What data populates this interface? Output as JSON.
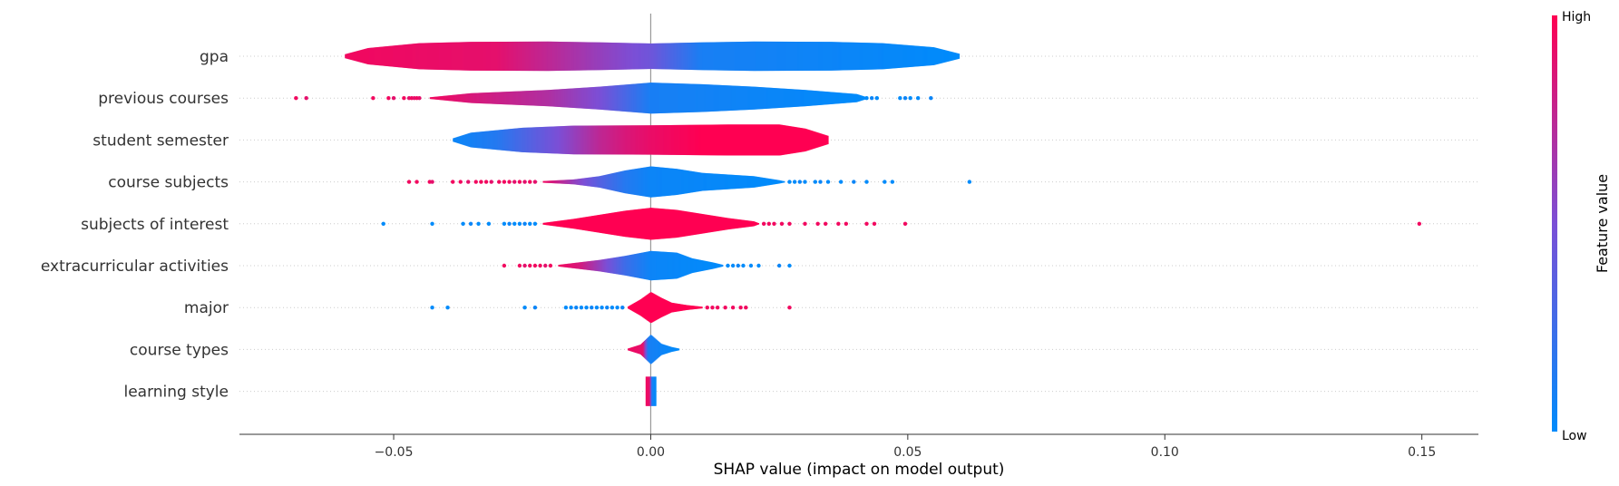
{
  "chart_data": {
    "type": "violin",
    "xlabel": "SHAP value (impact on model output)",
    "xlim": [
      -0.08,
      0.161
    ],
    "xticks": [
      -0.05,
      0.0,
      0.05,
      0.1,
      0.15
    ],
    "xtick_labels": [
      "−0.05",
      "0.00",
      "0.05",
      "0.10",
      "0.15"
    ],
    "colorbar": {
      "title": "Feature value",
      "high_label": "High",
      "low_label": "Low",
      "low_color": "#008bfb",
      "high_color": "#ff0052"
    },
    "features": [
      {
        "name": "gpa",
        "profile": [
          [
            -0.0595,
            0.12
          ],
          [
            -0.055,
            0.5
          ],
          [
            -0.045,
            0.8
          ],
          [
            -0.035,
            0.88
          ],
          [
            -0.02,
            0.9
          ],
          [
            -0.01,
            0.85
          ],
          [
            0.0,
            0.78
          ],
          [
            0.01,
            0.85
          ],
          [
            0.02,
            0.9
          ],
          [
            0.035,
            0.88
          ],
          [
            0.045,
            0.8
          ],
          [
            0.055,
            0.55
          ],
          [
            0.06,
            0.15
          ]
        ],
        "color": [
          [
            -0.06,
            0.95
          ],
          [
            -0.03,
            0.9
          ],
          [
            -0.02,
            0.75
          ],
          [
            -0.01,
            0.6
          ],
          [
            0.0,
            0.45
          ],
          [
            0.01,
            0.1
          ],
          [
            0.06,
            0.0
          ]
        ],
        "outliers": []
      },
      {
        "name": "previous courses",
        "profile": [
          [
            -0.043,
            0.05
          ],
          [
            -0.035,
            0.3
          ],
          [
            -0.02,
            0.5
          ],
          [
            -0.01,
            0.7
          ],
          [
            0.0,
            0.95
          ],
          [
            0.01,
            0.85
          ],
          [
            0.02,
            0.7
          ],
          [
            0.03,
            0.5
          ],
          [
            0.04,
            0.25
          ],
          [
            0.042,
            0.05
          ]
        ],
        "color": [
          [
            -0.043,
            0.95
          ],
          [
            -0.035,
            0.85
          ],
          [
            -0.02,
            0.7
          ],
          [
            -0.01,
            0.5
          ],
          [
            -0.005,
            0.3
          ],
          [
            0.0,
            0.1
          ],
          [
            0.042,
            0.0
          ]
        ],
        "outliers": [
          [
            -0.069,
            0.95
          ],
          [
            -0.067,
            0.9
          ],
          [
            -0.054,
            0.95
          ],
          [
            -0.051,
            0.95
          ],
          [
            -0.05,
            0.9
          ],
          [
            -0.048,
            0.95
          ],
          [
            -0.047,
            0.9
          ],
          [
            -0.0465,
            0.95
          ],
          [
            -0.046,
            0.9
          ],
          [
            -0.0455,
            0.95
          ],
          [
            -0.045,
            0.9
          ],
          [
            0.042,
            0.0
          ],
          [
            0.043,
            0.05
          ],
          [
            0.044,
            0.0
          ],
          [
            0.0485,
            0.0
          ],
          [
            0.0495,
            0.05
          ],
          [
            0.0505,
            0.0
          ],
          [
            0.052,
            0.0
          ],
          [
            0.0545,
            0.05
          ]
        ]
      },
      {
        "name": "student semester",
        "profile": [
          [
            -0.0385,
            0.1
          ],
          [
            -0.035,
            0.45
          ],
          [
            -0.025,
            0.75
          ],
          [
            -0.015,
            0.88
          ],
          [
            0.0,
            0.9
          ],
          [
            0.015,
            0.95
          ],
          [
            0.025,
            0.95
          ],
          [
            0.03,
            0.7
          ],
          [
            0.0345,
            0.25
          ]
        ],
        "color": [
          [
            -0.038,
            0.05
          ],
          [
            -0.03,
            0.15
          ],
          [
            -0.025,
            0.3
          ],
          [
            -0.018,
            0.5
          ],
          [
            -0.01,
            0.75
          ],
          [
            -0.005,
            0.85
          ],
          [
            0.0,
            0.92
          ],
          [
            0.01,
            1.0
          ],
          [
            0.035,
            1.0
          ]
        ],
        "outliers": []
      },
      {
        "name": "course subjects",
        "profile": [
          [
            -0.021,
            0.05
          ],
          [
            -0.015,
            0.15
          ],
          [
            -0.01,
            0.35
          ],
          [
            -0.005,
            0.7
          ],
          [
            0.0,
            0.95
          ],
          [
            0.005,
            0.8
          ],
          [
            0.01,
            0.55
          ],
          [
            0.02,
            0.35
          ],
          [
            0.025,
            0.1
          ],
          [
            0.026,
            0.03
          ]
        ],
        "color": [
          [
            -0.021,
            0.95
          ],
          [
            -0.015,
            0.6
          ],
          [
            -0.01,
            0.35
          ],
          [
            -0.005,
            0.15
          ],
          [
            0.0,
            0.05
          ],
          [
            0.026,
            0.0
          ]
        ],
        "outliers": [
          [
            -0.047,
            0.95
          ],
          [
            -0.0455,
            0.95
          ],
          [
            -0.043,
            0.95
          ],
          [
            -0.0425,
            0.9
          ],
          [
            -0.0385,
            0.95
          ],
          [
            -0.037,
            0.95
          ],
          [
            -0.0355,
            0.9
          ],
          [
            -0.034,
            0.95
          ],
          [
            -0.033,
            0.95
          ],
          [
            -0.032,
            0.95
          ],
          [
            -0.031,
            0.9
          ],
          [
            -0.0295,
            0.95
          ],
          [
            -0.0285,
            0.95
          ],
          [
            -0.0275,
            0.95
          ],
          [
            -0.0265,
            0.9
          ],
          [
            -0.0255,
            0.95
          ],
          [
            -0.0245,
            0.9
          ],
          [
            -0.0235,
            0.95
          ],
          [
            -0.0225,
            0.9
          ],
          [
            0.027,
            0.0
          ],
          [
            0.028,
            0.0
          ],
          [
            0.029,
            0.05
          ],
          [
            0.03,
            0.0
          ],
          [
            0.032,
            0.0
          ],
          [
            0.033,
            0.05
          ],
          [
            0.0345,
            0.0
          ],
          [
            0.037,
            0.0
          ],
          [
            0.0395,
            0.05
          ],
          [
            0.042,
            0.0
          ],
          [
            0.0455,
            0.0
          ],
          [
            0.047,
            0.0
          ],
          [
            0.062,
            0.0
          ]
        ]
      },
      {
        "name": "subjects of interest",
        "profile": [
          [
            -0.021,
            0.05
          ],
          [
            -0.015,
            0.3
          ],
          [
            -0.01,
            0.55
          ],
          [
            -0.005,
            0.8
          ],
          [
            0.0,
            0.98
          ],
          [
            0.005,
            0.85
          ],
          [
            0.01,
            0.6
          ],
          [
            0.015,
            0.35
          ],
          [
            0.02,
            0.15
          ],
          [
            0.021,
            0.03
          ]
        ],
        "color": [
          [
            -0.021,
            1.0
          ],
          [
            0.021,
            1.0
          ]
        ],
        "outliers": [
          [
            -0.052,
            0.0
          ],
          [
            -0.0425,
            0.0
          ],
          [
            -0.0365,
            0.0
          ],
          [
            -0.035,
            0.05
          ],
          [
            -0.0335,
            0.0
          ],
          [
            -0.0315,
            0.0
          ],
          [
            -0.0285,
            0.0
          ],
          [
            -0.0275,
            0.05
          ],
          [
            -0.0265,
            0.0
          ],
          [
            -0.0255,
            0.0
          ],
          [
            -0.0245,
            0.05
          ],
          [
            -0.0235,
            0.0
          ],
          [
            -0.0225,
            0.0
          ],
          [
            0.022,
            0.95
          ],
          [
            0.023,
            0.95
          ],
          [
            0.024,
            0.95
          ],
          [
            0.0255,
            0.95
          ],
          [
            0.027,
            0.95
          ],
          [
            0.03,
            0.95
          ],
          [
            0.0325,
            0.95
          ],
          [
            0.034,
            0.95
          ],
          [
            0.0365,
            0.95
          ],
          [
            0.038,
            0.95
          ],
          [
            0.042,
            0.95
          ],
          [
            0.0435,
            0.95
          ],
          [
            0.0495,
            0.95
          ],
          [
            0.1495,
            0.95
          ]
        ]
      },
      {
        "name": "extracurricular activities",
        "profile": [
          [
            -0.018,
            0.05
          ],
          [
            -0.014,
            0.2
          ],
          [
            -0.01,
            0.35
          ],
          [
            -0.005,
            0.6
          ],
          [
            0.0,
            0.9
          ],
          [
            0.005,
            0.8
          ],
          [
            0.008,
            0.45
          ],
          [
            0.012,
            0.2
          ],
          [
            0.014,
            0.05
          ]
        ],
        "color": [
          [
            -0.018,
            0.95
          ],
          [
            -0.014,
            0.85
          ],
          [
            -0.01,
            0.6
          ],
          [
            -0.005,
            0.25
          ],
          [
            0.0,
            0.05
          ],
          [
            0.014,
            0.0
          ]
        ],
        "outliers": [
          [
            -0.0285,
            0.95
          ],
          [
            -0.0255,
            0.95
          ],
          [
            -0.0245,
            0.9
          ],
          [
            -0.0235,
            0.95
          ],
          [
            -0.0225,
            0.95
          ],
          [
            -0.0215,
            0.95
          ],
          [
            -0.0205,
            0.9
          ],
          [
            -0.0195,
            0.95
          ],
          [
            0.015,
            0.0
          ],
          [
            0.016,
            0.0
          ],
          [
            0.017,
            0.05
          ],
          [
            0.018,
            0.0
          ],
          [
            0.0195,
            0.0
          ],
          [
            0.021,
            0.0
          ],
          [
            0.025,
            0.05
          ],
          [
            0.027,
            0.0
          ]
        ]
      },
      {
        "name": "major",
        "profile": [
          [
            -0.0045,
            0.05
          ],
          [
            -0.002,
            0.5
          ],
          [
            0.0,
            0.95
          ],
          [
            0.002,
            0.6
          ],
          [
            0.004,
            0.3
          ],
          [
            0.007,
            0.15
          ],
          [
            0.01,
            0.05
          ]
        ],
        "color": [
          [
            -0.0045,
            1.0
          ],
          [
            0.01,
            1.0
          ]
        ],
        "outliers": [
          [
            -0.0425,
            0.0
          ],
          [
            -0.0395,
            0.0
          ],
          [
            -0.0245,
            0.0
          ],
          [
            -0.0225,
            0.05
          ],
          [
            -0.0165,
            0.0
          ],
          [
            -0.0155,
            0.0
          ],
          [
            -0.0145,
            0.05
          ],
          [
            -0.0135,
            0.0
          ],
          [
            -0.0125,
            0.0
          ],
          [
            -0.0115,
            0.05
          ],
          [
            -0.0105,
            0.0
          ],
          [
            -0.0095,
            0.0
          ],
          [
            -0.0085,
            0.05
          ],
          [
            -0.0075,
            0.0
          ],
          [
            -0.0065,
            0.0
          ],
          [
            -0.0055,
            0.05
          ],
          [
            0.011,
            0.95
          ],
          [
            0.012,
            0.95
          ],
          [
            0.013,
            0.95
          ],
          [
            0.0145,
            0.95
          ],
          [
            0.016,
            0.95
          ],
          [
            0.0175,
            0.95
          ],
          [
            0.0185,
            0.95
          ],
          [
            0.027,
            0.95
          ]
        ]
      },
      {
        "name": "course types",
        "profile": [
          [
            -0.0045,
            0.05
          ],
          [
            -0.002,
            0.3
          ],
          [
            0.0,
            0.9
          ],
          [
            0.002,
            0.35
          ],
          [
            0.004,
            0.15
          ],
          [
            0.0055,
            0.05
          ]
        ],
        "color": [
          [
            -0.0045,
            0.95
          ],
          [
            -0.0015,
            0.9
          ],
          [
            -0.0005,
            0.1
          ],
          [
            0.0055,
            0.0
          ]
        ],
        "outliers": []
      },
      {
        "name": "learning style",
        "profile": [
          [
            -0.001,
            0.9
          ],
          [
            0.0,
            0.9
          ],
          [
            0.001,
            0.9
          ]
        ],
        "color": [
          [
            -0.001,
            0.95
          ],
          [
            -0.0002,
            0.9
          ],
          [
            0.0002,
            0.1
          ],
          [
            0.001,
            0.0
          ]
        ],
        "outliers": []
      }
    ]
  }
}
